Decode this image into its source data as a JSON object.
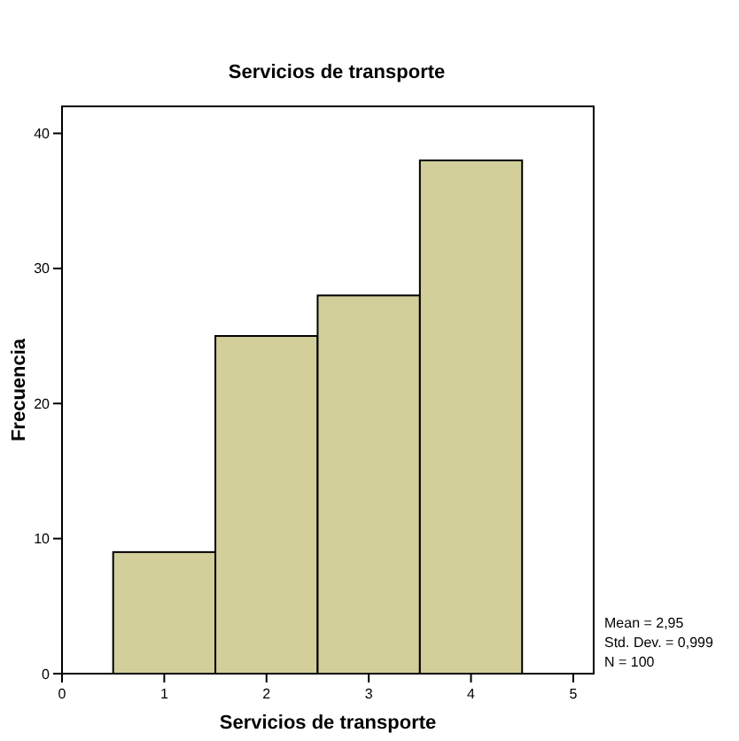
{
  "chart_data": {
    "type": "histogram",
    "title": "Servicios de transporte",
    "xlabel": "Servicios de transporte",
    "ylabel": "Frecuencia",
    "bins": [
      0.5,
      1.5,
      2.5,
      3.5,
      4.5
    ],
    "values": [
      9,
      25,
      28,
      38
    ],
    "color": "#d3cf9b",
    "xlim": [
      0,
      5.2
    ],
    "xticks": [
      0,
      1,
      2,
      3,
      4,
      5
    ],
    "ylim": [
      0,
      42
    ],
    "yticks": [
      0,
      10,
      20,
      30,
      40
    ],
    "grid": false,
    "annotations": [
      "Mean = 2,95",
      "Std. Dev. = 0,999",
      "N = 100"
    ]
  }
}
